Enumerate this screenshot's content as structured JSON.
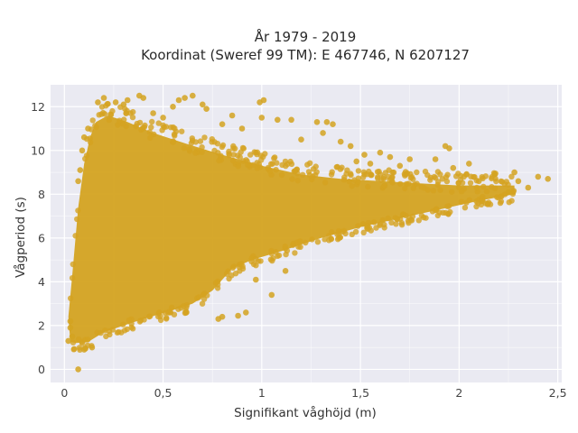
{
  "chart_data": {
    "type": "scatter",
    "title": "År 1979 - 2019",
    "subtitle": "Koordinat (Sweref 99 TM): E 467746, N 6207127",
    "xlabel": "Signifikant våghöjd (m)",
    "ylabel": "Vågperiod (s)",
    "xlim": [
      -0.07,
      2.52
    ],
    "ylim": [
      -0.6,
      13.0
    ],
    "x_ticks": [
      0,
      0.5,
      1,
      1.5,
      2,
      2.5
    ],
    "x_tick_labels": [
      "0",
      "0,5",
      "1",
      "1,5",
      "2",
      "2,5"
    ],
    "y_ticks": [
      0,
      2,
      4,
      6,
      8,
      10,
      12
    ],
    "y_tick_labels": [
      "0",
      "2",
      "4",
      "6",
      "8",
      "10",
      "12"
    ],
    "grid": true,
    "legend": "none",
    "marker_color": "#D4A321",
    "background_color": "#EAEAF2",
    "points": [
      [
        0.07,
        0.0
      ],
      [
        2.4,
        8.8
      ],
      [
        2.3,
        8.6
      ],
      [
        2.35,
        8.3
      ],
      [
        2.18,
        8.9
      ],
      [
        2.25,
        8.1
      ],
      [
        1.93,
        10.2
      ],
      [
        1.95,
        10.1
      ],
      [
        1.88,
        9.6
      ],
      [
        1.97,
        9.2
      ],
      [
        1.52,
        9.8
      ],
      [
        1.55,
        9.4
      ],
      [
        1.48,
        9.5
      ],
      [
        1.28,
        11.3
      ],
      [
        1.33,
        11.3
      ],
      [
        1.36,
        11.2
      ],
      [
        1.31,
        10.8
      ],
      [
        1.08,
        11.4
      ],
      [
        1.15,
        11.4
      ],
      [
        1.0,
        11.5
      ],
      [
        1.01,
        12.3
      ],
      [
        0.99,
        12.2
      ],
      [
        0.61,
        12.4
      ],
      [
        0.65,
        12.5
      ],
      [
        0.38,
        12.5
      ],
      [
        0.4,
        12.4
      ],
      [
        0.17,
        12.2
      ],
      [
        0.2,
        12.4
      ],
      [
        0.26,
        12.2
      ],
      [
        0.32,
        12.3
      ],
      [
        0.55,
        12.0
      ],
      [
        0.72,
        11.9
      ],
      [
        0.85,
        11.6
      ],
      [
        0.07,
        8.6
      ],
      [
        0.08,
        9.1
      ],
      [
        0.09,
        10.0
      ],
      [
        0.1,
        10.6
      ],
      [
        0.12,
        11.0
      ],
      [
        0.45,
        11.7
      ],
      [
        0.5,
        11.5
      ],
      [
        0.8,
        11.2
      ],
      [
        0.9,
        11.0
      ],
      [
        1.2,
        10.5
      ],
      [
        1.4,
        10.4
      ],
      [
        1.6,
        9.9
      ],
      [
        1.75,
        9.6
      ],
      [
        1.05,
        3.4
      ],
      [
        0.97,
        4.1
      ],
      [
        1.12,
        4.5
      ],
      [
        0.88,
        2.45
      ],
      [
        0.8,
        2.4
      ],
      [
        0.78,
        2.3
      ],
      [
        0.92,
        2.6
      ],
      [
        0.03,
        2.2
      ],
      [
        0.02,
        1.3
      ],
      [
        0.04,
        1.5
      ],
      [
        0.03,
        1.9
      ],
      [
        0.1,
        0.9
      ],
      [
        0.14,
        1.0
      ],
      [
        2.45,
        8.7
      ],
      [
        2.28,
        9.0
      ],
      [
        2.1,
        8.6
      ],
      [
        2.05,
        9.4
      ],
      [
        1.7,
        9.3
      ],
      [
        1.65,
        9.7
      ],
      [
        1.45,
        10.2
      ],
      [
        0.7,
        12.1
      ],
      [
        0.3,
        12.1
      ],
      [
        0.58,
        12.3
      ]
    ]
  }
}
